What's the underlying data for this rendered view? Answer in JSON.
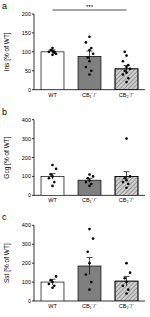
{
  "chart_data": [
    {
      "type": "bar",
      "title": "a",
      "y_label": "Ins [% of WT]",
      "categories": [
        "WT",
        "CB₁⁻/⁻",
        "CB₂⁻/⁻"
      ],
      "values": [
        100,
        88,
        55
      ],
      "errors": [
        5,
        14,
        9
      ],
      "points": [
        [
          92,
          98,
          100,
          103,
          105,
          95,
          110,
          100
        ],
        [
          40,
          50,
          60,
          75,
          85,
          95,
          105,
          110,
          125,
          140
        ],
        [
          20,
          30,
          40,
          45,
          50,
          55,
          60,
          65,
          75,
          90,
          100
        ]
      ],
      "colors": [
        "#ffffff",
        "#7f7f7f",
        "#d0d0d0"
      ],
      "ylim": [
        0,
        200
      ],
      "yticks": [
        0,
        50,
        100,
        150,
        200
      ],
      "annotations": [
        {
          "text": "***",
          "between": [
            "WT",
            "CB₂⁻/⁻"
          ]
        }
      ]
    },
    {
      "type": "bar",
      "title": "b",
      "y_label": "Gcg [% of WT]",
      "categories": [
        "WT",
        "CB₁⁻/⁻",
        "CB₂⁻/⁻"
      ],
      "values": [
        100,
        80,
        100
      ],
      "errors": [
        15,
        10,
        25
      ],
      "points": [
        [
          50,
          70,
          90,
          100,
          110,
          140,
          160
        ],
        [
          50,
          60,
          70,
          80,
          90,
          100,
          110
        ],
        [
          40,
          60,
          70,
          80,
          90,
          100,
          300
        ]
      ],
      "colors": [
        "#ffffff",
        "#7f7f7f",
        "#d0d0d0"
      ],
      "ylim": [
        0,
        400
      ],
      "yticks": [
        0,
        100,
        200,
        300,
        400
      ]
    },
    {
      "type": "bar",
      "title": "c",
      "y_label": "Sst [% of WT]",
      "categories": [
        "WT",
        "CB₁⁻/⁻",
        "CB₂⁻/⁻"
      ],
      "values": [
        100,
        185,
        105
      ],
      "errors": [
        15,
        45,
        25
      ],
      "points": [
        [
          70,
          80,
          90,
          100,
          110,
          130
        ],
        [
          60,
          100,
          140,
          200,
          260,
          330,
          380
        ],
        [
          40,
          60,
          80,
          100,
          120,
          150,
          200
        ]
      ],
      "colors": [
        "#ffffff",
        "#7f7f7f",
        "#d0d0d0"
      ],
      "ylim": [
        0,
        400
      ],
      "yticks": [
        0,
        100,
        200,
        300,
        400
      ]
    }
  ]
}
